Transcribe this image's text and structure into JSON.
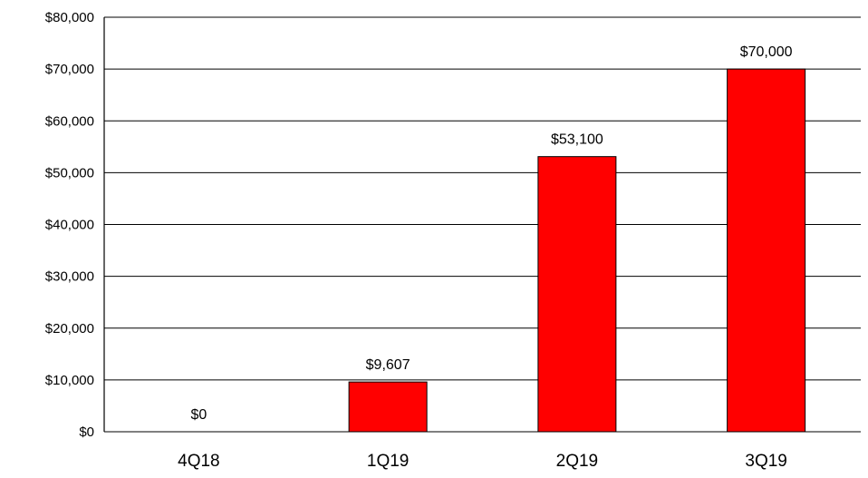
{
  "chart_data": {
    "type": "bar",
    "title": "",
    "xlabel": "",
    "ylabel": "",
    "categories": [
      "4Q18",
      "1Q19",
      "2Q19",
      "3Q19"
    ],
    "values": [
      0,
      9607,
      53100,
      70000
    ],
    "value_labels": [
      "$0",
      "$9,607",
      "$53,100",
      "$70,000"
    ],
    "ylim": [
      0,
      80000
    ],
    "yticks": [
      0,
      10000,
      20000,
      30000,
      40000,
      50000,
      60000,
      70000,
      80000
    ],
    "ytick_labels": [
      "$0",
      "$10,000",
      "$20,000",
      "$30,000",
      "$40,000",
      "$50,000",
      "$60,000",
      "$70,000",
      "$80,000"
    ],
    "grid": true,
    "bar_color": "#ff0000",
    "legend": "none"
  }
}
